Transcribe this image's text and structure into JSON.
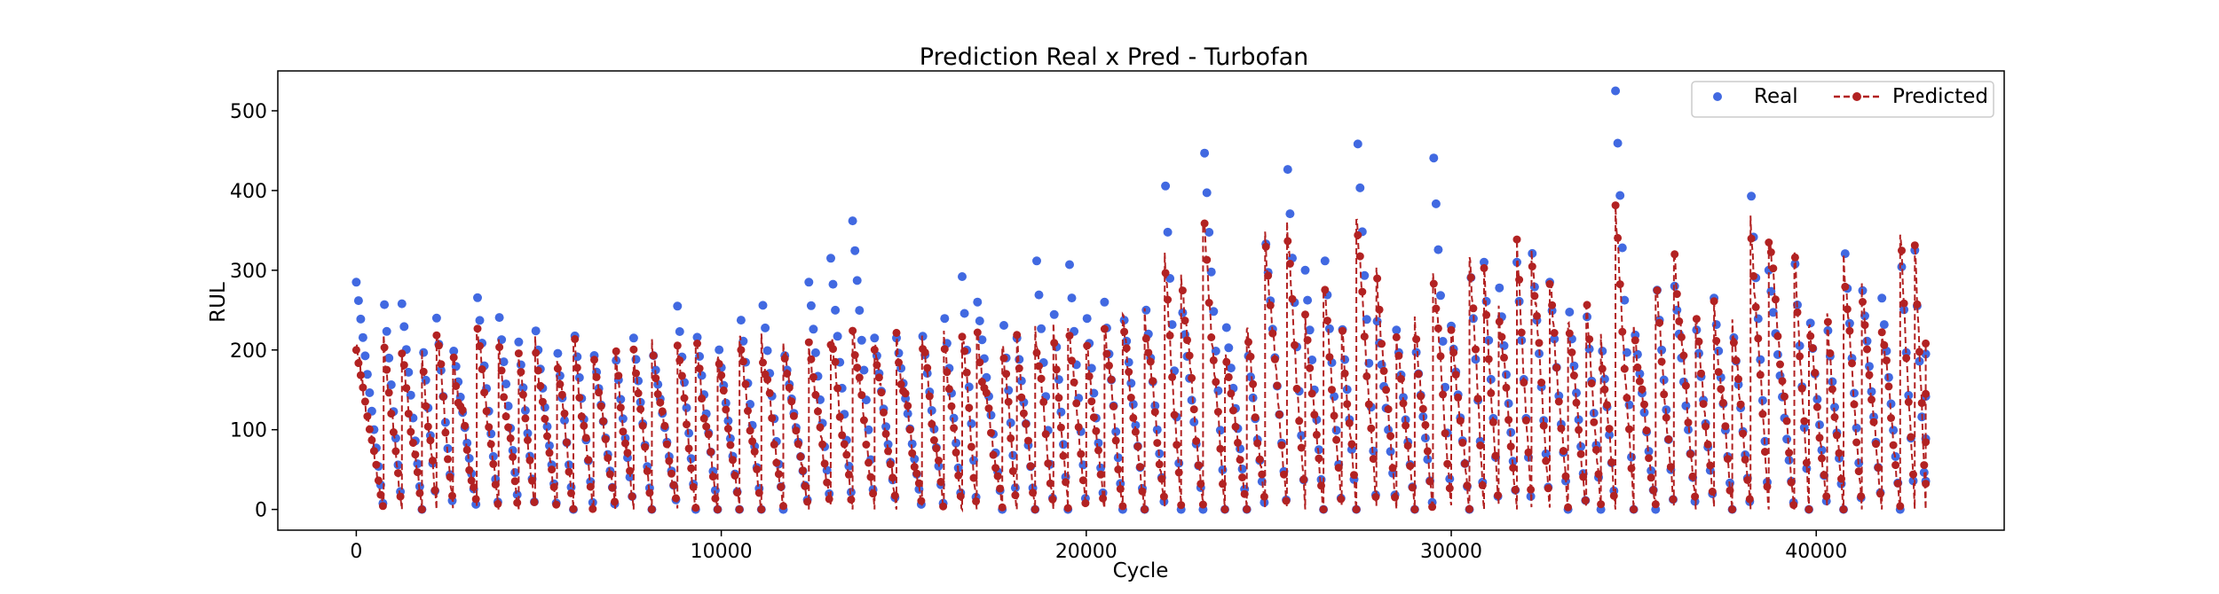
{
  "chart_data": {
    "type": "scatter",
    "title": "Prediction Real x Pred - Turbofan",
    "xlabel": "Cycle",
    "ylabel": "RUL",
    "xlim": [
      -2150,
      45150
    ],
    "ylim": [
      -26,
      550
    ],
    "xticks": [
      0,
      10000,
      20000,
      30000,
      40000
    ],
    "yticks": [
      0,
      100,
      200,
      300,
      400,
      500
    ],
    "grid": false,
    "legend_position": "top-right",
    "series": [
      {
        "name": "Real",
        "color": "#4169e1",
        "style": "markers"
      },
      {
        "name": "Predicted",
        "color": "#b22222",
        "style": "dashed-line-with-markers"
      }
    ],
    "x_range": [
      0,
      43000
    ],
    "real_peaks": [
      [
        0,
        285
      ],
      [
        750,
        268
      ],
      [
        1250,
        258
      ],
      [
        1800,
        220
      ],
      [
        2200,
        240
      ],
      [
        2650,
        205
      ],
      [
        3300,
        275
      ],
      [
        3900,
        250
      ],
      [
        4450,
        210
      ],
      [
        4900,
        232
      ],
      [
        5500,
        205
      ],
      [
        5950,
        235
      ],
      [
        6500,
        200
      ],
      [
        7100,
        195
      ],
      [
        7600,
        215
      ],
      [
        8100,
        205
      ],
      [
        8800,
        255
      ],
      [
        9300,
        232
      ],
      [
        9900,
        215
      ],
      [
        10500,
        255
      ],
      [
        11100,
        275
      ],
      [
        11700,
        205
      ],
      [
        12400,
        285
      ],
      [
        13000,
        315
      ],
      [
        13600,
        362
      ],
      [
        14200,
        215
      ],
      [
        14800,
        215
      ],
      [
        15500,
        225
      ],
      [
        16100,
        250
      ],
      [
        16600,
        292
      ],
      [
        17000,
        268
      ],
      [
        17700,
        258
      ],
      [
        18100,
        215
      ],
      [
        18600,
        340
      ],
      [
        19100,
        258
      ],
      [
        19500,
        335
      ],
      [
        20000,
        250
      ],
      [
        20500,
        260
      ],
      [
        21000,
        255
      ],
      [
        21600,
        270
      ],
      [
        22150,
        425
      ],
      [
        22600,
        265
      ],
      [
        23200,
        480
      ],
      [
        23800,
        245
      ],
      [
        24400,
        210
      ],
      [
        24900,
        345
      ],
      [
        25500,
        445
      ],
      [
        26000,
        300
      ],
      [
        26500,
        340
      ],
      [
        27000,
        238
      ],
      [
        27400,
        495
      ],
      [
        27950,
        245
      ],
      [
        28500,
        225
      ],
      [
        29000,
        215
      ],
      [
        29500,
        460
      ],
      [
        30000,
        230
      ],
      [
        30500,
        325
      ],
      [
        30900,
        310
      ],
      [
        31300,
        290
      ],
      [
        31800,
        310
      ],
      [
        32200,
        335
      ],
      [
        32700,
        285
      ],
      [
        33200,
        270
      ],
      [
        33700,
        255
      ],
      [
        34100,
        222
      ],
      [
        34500,
        525
      ],
      [
        35000,
        235
      ],
      [
        35600,
        300
      ],
      [
        36100,
        290
      ],
      [
        36700,
        235
      ],
      [
        37200,
        265
      ],
      [
        37700,
        235
      ],
      [
        38200,
        410
      ],
      [
        38700,
        300
      ],
      [
        39400,
        325
      ],
      [
        39800,
        255
      ],
      [
        40300,
        235
      ],
      [
        40750,
        350
      ],
      [
        41250,
        285
      ],
      [
        41800,
        265
      ],
      [
        42300,
        340
      ],
      [
        42700,
        325
      ],
      [
        43000,
        195
      ]
    ],
    "pred_peaks": [
      [
        0,
        200
      ],
      [
        750,
        210
      ],
      [
        1250,
        190
      ],
      [
        1800,
        195
      ],
      [
        2200,
        230
      ],
      [
        2650,
        190
      ],
      [
        3300,
        230
      ],
      [
        3900,
        200
      ],
      [
        4450,
        195
      ],
      [
        4900,
        205
      ],
      [
        5500,
        200
      ],
      [
        5950,
        215
      ],
      [
        6500,
        195
      ],
      [
        7100,
        190
      ],
      [
        7600,
        200
      ],
      [
        8100,
        200
      ],
      [
        8800,
        215
      ],
      [
        9300,
        205
      ],
      [
        9900,
        200
      ],
      [
        10500,
        210
      ],
      [
        11100,
        215
      ],
      [
        11700,
        200
      ],
      [
        12400,
        210
      ],
      [
        13000,
        215
      ],
      [
        13600,
        230
      ],
      [
        14200,
        205
      ],
      [
        14800,
        210
      ],
      [
        15500,
        215
      ],
      [
        16100,
        215
      ],
      [
        16600,
        230
      ],
      [
        17000,
        220
      ],
      [
        17700,
        215
      ],
      [
        18100,
        205
      ],
      [
        18600,
        230
      ],
      [
        19100,
        220
      ],
      [
        19500,
        240
      ],
      [
        20000,
        205
      ],
      [
        20500,
        240
      ],
      [
        21000,
        235
      ],
      [
        21600,
        250
      ],
      [
        22150,
        310
      ],
      [
        22600,
        300
      ],
      [
        23200,
        368
      ],
      [
        23800,
        200
      ],
      [
        24400,
        225
      ],
      [
        24900,
        340
      ],
      [
        25500,
        355
      ],
      [
        26000,
        240
      ],
      [
        26500,
        290
      ],
      [
        27000,
        230
      ],
      [
        27400,
        372
      ],
      [
        27950,
        290
      ],
      [
        28500,
        215
      ],
      [
        29000,
        230
      ],
      [
        29500,
        310
      ],
      [
        30000,
        225
      ],
      [
        30500,
        330
      ],
      [
        30900,
        290
      ],
      [
        31300,
        255
      ],
      [
        31800,
        325
      ],
      [
        32200,
        335
      ],
      [
        32700,
        285
      ],
      [
        33200,
        245
      ],
      [
        33700,
        255
      ],
      [
        34100,
        215
      ],
      [
        34500,
        372
      ],
      [
        35000,
        232
      ],
      [
        35600,
        285
      ],
      [
        36100,
        328
      ],
      [
        36700,
        240
      ],
      [
        37200,
        250
      ],
      [
        37700,
        235
      ],
      [
        38200,
        360
      ],
      [
        38700,
        348
      ],
      [
        39400,
        325
      ],
      [
        39800,
        240
      ],
      [
        40300,
        232
      ],
      [
        40750,
        320
      ],
      [
        41250,
        270
      ],
      [
        41800,
        235
      ],
      [
        42300,
        345
      ],
      [
        42700,
        345
      ],
      [
        43000,
        198
      ]
    ]
  }
}
